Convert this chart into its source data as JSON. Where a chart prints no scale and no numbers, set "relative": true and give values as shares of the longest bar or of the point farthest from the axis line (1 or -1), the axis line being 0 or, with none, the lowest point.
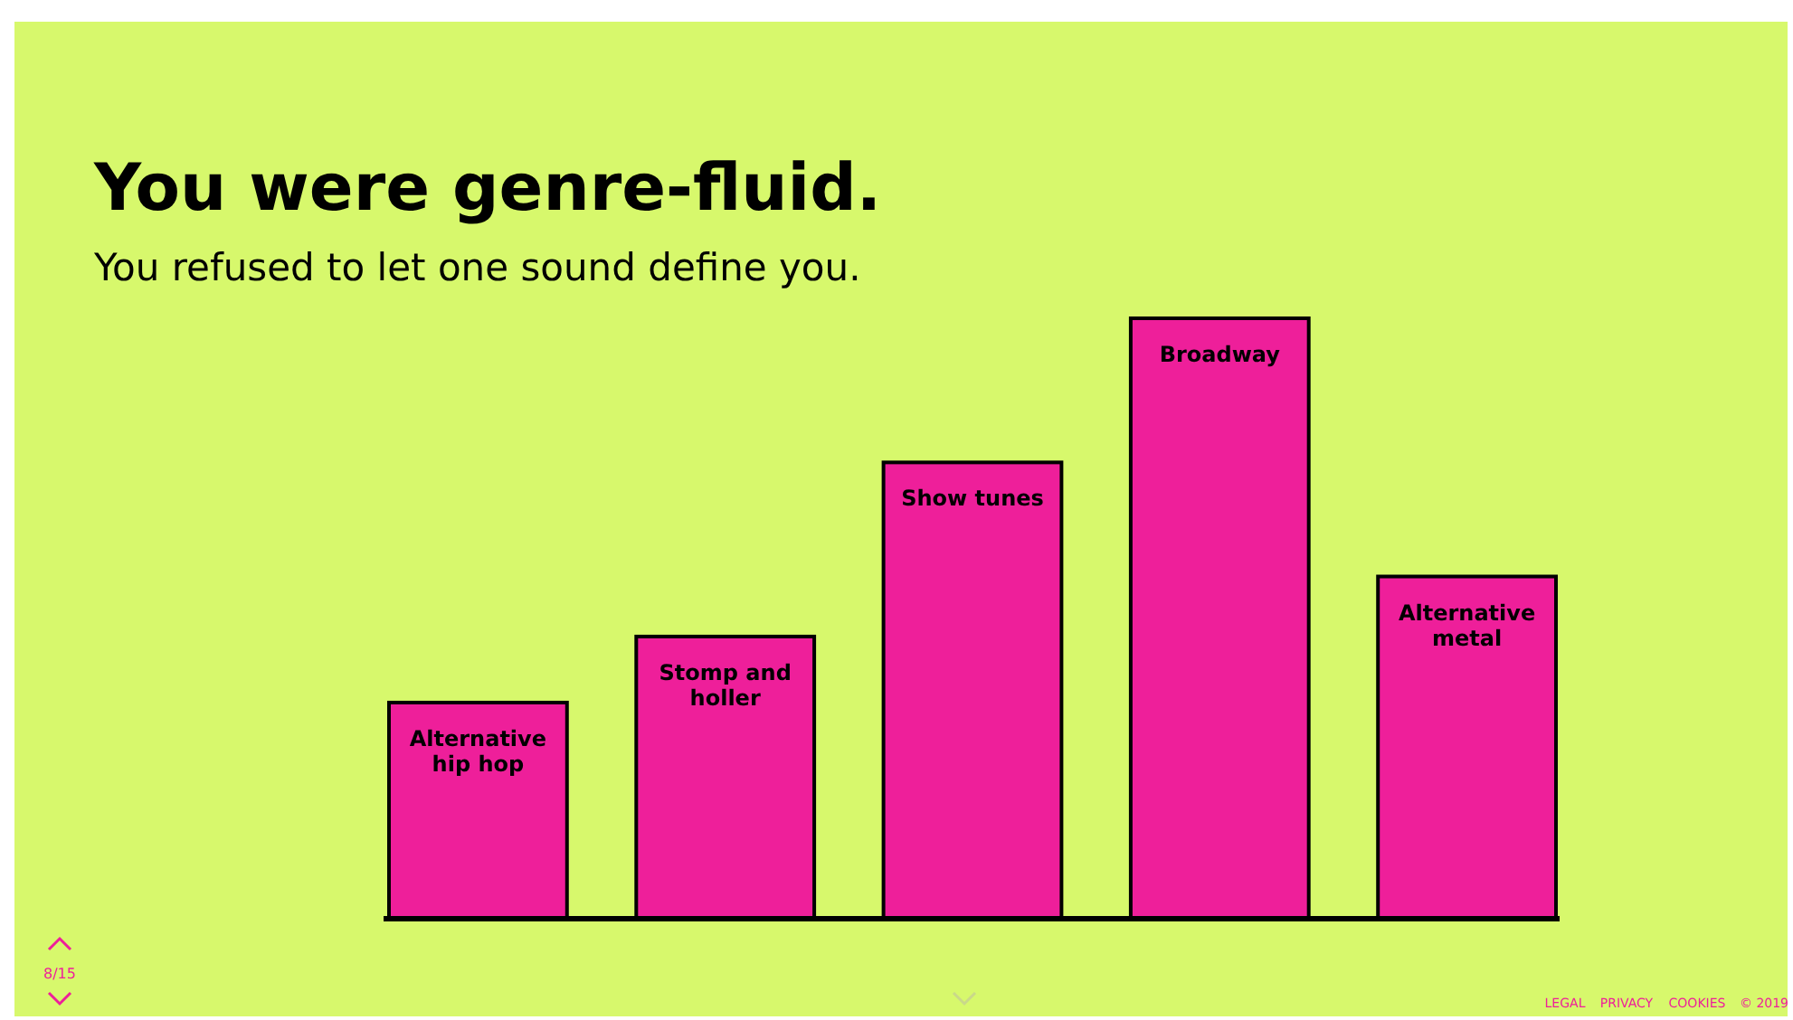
{
  "chart_data": {
    "type": "bar",
    "relative": true,
    "title": "You were genre-fluid.",
    "subtitle": "You refused to let one sound define you.",
    "categories": [
      "Alternative hip hop",
      "Stomp and holler",
      "Show tunes",
      "Broadway",
      "Alternative metal"
    ],
    "values": [
      0.36,
      0.47,
      0.76,
      1,
      0.57
    ],
    "color": "#ee1f9a",
    "annotations": [
      "8/15",
      "LEGAL",
      "PRIVACY",
      "COOKIES",
      "© 2019"
    ]
  }
}
